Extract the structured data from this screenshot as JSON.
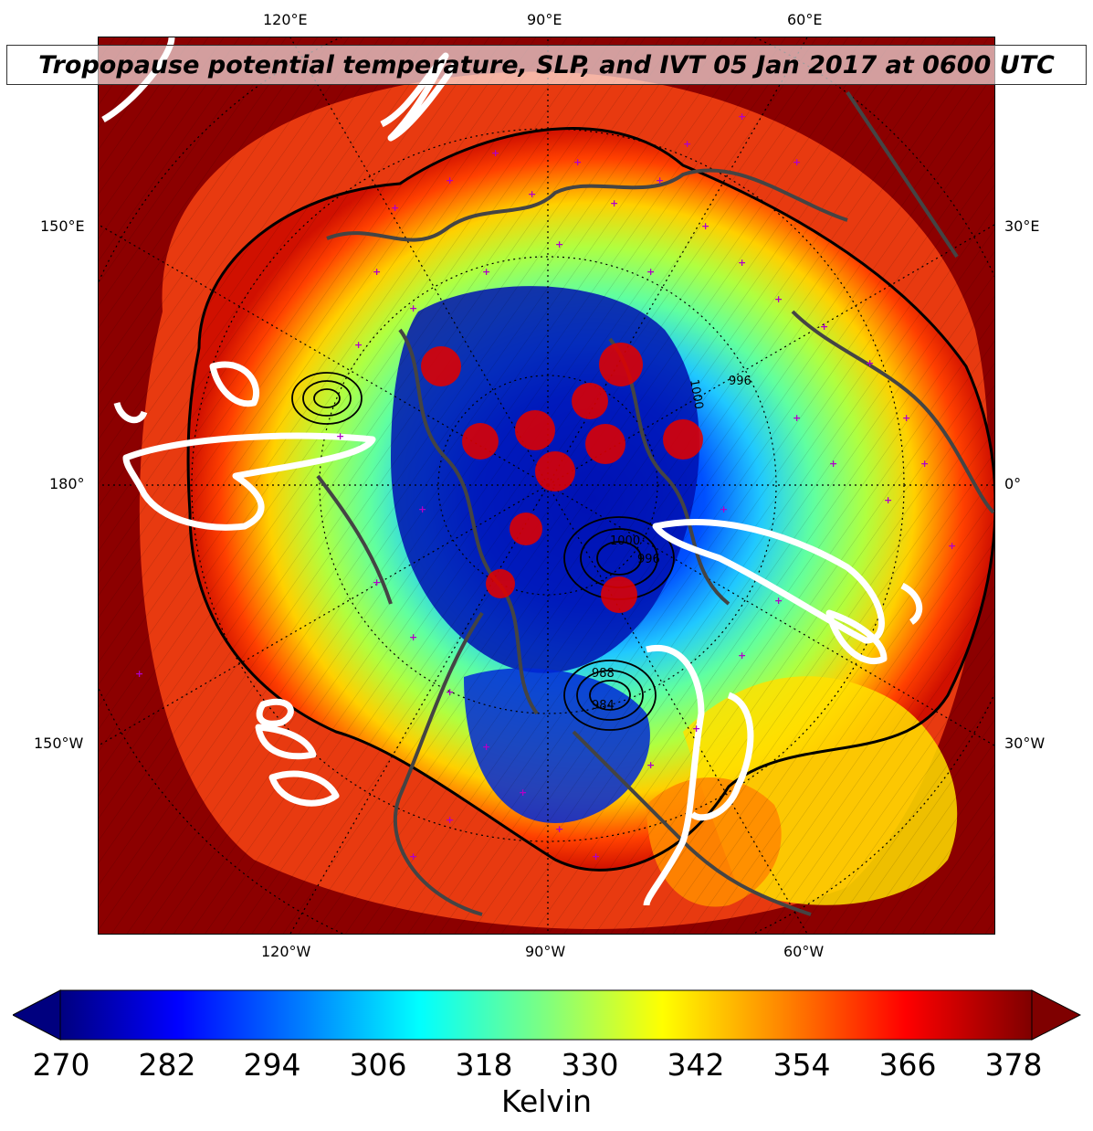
{
  "title": "Tropopause potential temperature, SLP, and IVT 05 Jan 2017 at 0600 UTC",
  "longitude_labels": {
    "top": [
      "120°E",
      "90°E",
      "60°E"
    ],
    "bottom": [
      "120°W",
      "90°W",
      "60°W"
    ],
    "left": [
      "150°E",
      "180°",
      "150°W"
    ],
    "right": [
      "30°E",
      "0°",
      "30°W"
    ]
  },
  "slp_contour_labels": [
    "1000",
    "996",
    "988",
    "984",
    "1000",
    "996"
  ],
  "colorbar": {
    "ticks": [
      "270",
      "282",
      "294",
      "306",
      "318",
      "330",
      "342",
      "354",
      "366",
      "378"
    ],
    "label": "Kelvin",
    "colors": [
      "#00007f",
      "#0000ff",
      "#007fff",
      "#00ffff",
      "#7fff7f",
      "#ffff00",
      "#ff7f00",
      "#ff0000",
      "#7f0000"
    ]
  },
  "legend_colors": {
    "ivt_contour": "#ffffff",
    "coastline": "#444444",
    "station_marker": "#b000c8",
    "high_ivt_blobs": "#e00000"
  }
}
